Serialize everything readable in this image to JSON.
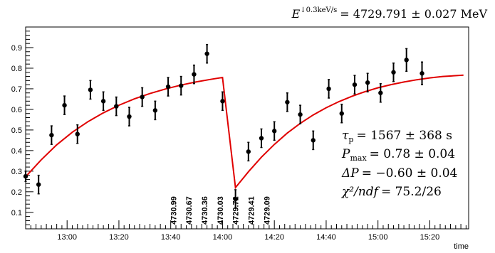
{
  "chart_data": {
    "type": "scatter",
    "title": "",
    "xlabel": "time",
    "ylabel": "",
    "x_unit": "minutes",
    "xlim": [
      "12:44",
      "15:35"
    ],
    "ylim": [
      0.02,
      1.0
    ],
    "y_ticks": [
      0.1,
      0.2,
      0.3,
      0.4,
      0.5,
      0.6,
      0.7,
      0.8,
      0.9
    ],
    "x_ticks": [
      "13:00",
      "13:20",
      "13:40",
      "14:00",
      "14:20",
      "14:40",
      "15:00",
      "15:20"
    ],
    "header": {
      "sym": "E",
      "sup": "↓0.3keV/s",
      "rhs": "= 4729.791 ± 0.027 MeV"
    },
    "points": [
      {
        "t": "12:44",
        "y": 0.275,
        "err": 0.025
      },
      {
        "t": "12:49",
        "y": 0.235,
        "err": 0.045
      },
      {
        "t": "12:54",
        "y": 0.475,
        "err": 0.045
      },
      {
        "t": "12:59",
        "y": 0.62,
        "err": 0.045
      },
      {
        "t": "13:04",
        "y": 0.48,
        "err": 0.045
      },
      {
        "t": "13:09",
        "y": 0.695,
        "err": 0.045
      },
      {
        "t": "13:14",
        "y": 0.64,
        "err": 0.045
      },
      {
        "t": "13:19",
        "y": 0.615,
        "err": 0.045
      },
      {
        "t": "13:24",
        "y": 0.565,
        "err": 0.045
      },
      {
        "t": "13:29",
        "y": 0.66,
        "err": 0.045
      },
      {
        "t": "13:34",
        "y": 0.595,
        "err": 0.045
      },
      {
        "t": "13:39",
        "y": 0.71,
        "err": 0.045
      },
      {
        "t": "13:44",
        "y": 0.715,
        "err": 0.045
      },
      {
        "t": "13:49",
        "y": 0.77,
        "err": 0.045
      },
      {
        "t": "13:54",
        "y": 0.87,
        "err": 0.045
      },
      {
        "t": "14:00",
        "y": 0.64,
        "err": 0.045
      },
      {
        "t": "14:05",
        "y": 0.165,
        "err": 0.045
      },
      {
        "t": "14:10",
        "y": 0.395,
        "err": 0.045
      },
      {
        "t": "14:15",
        "y": 0.46,
        "err": 0.045
      },
      {
        "t": "14:20",
        "y": 0.495,
        "err": 0.045
      },
      {
        "t": "14:25",
        "y": 0.635,
        "err": 0.045
      },
      {
        "t": "14:30",
        "y": 0.575,
        "err": 0.045
      },
      {
        "t": "14:35",
        "y": 0.45,
        "err": 0.045
      },
      {
        "t": "14:41",
        "y": 0.7,
        "err": 0.045
      },
      {
        "t": "14:46",
        "y": 0.58,
        "err": 0.045
      },
      {
        "t": "14:51",
        "y": 0.72,
        "err": 0.045
      },
      {
        "t": "14:56",
        "y": 0.73,
        "err": 0.045
      },
      {
        "t": "15:01",
        "y": 0.68,
        "err": 0.045
      },
      {
        "t": "15:06",
        "y": 0.78,
        "err": 0.045
      },
      {
        "t": "15:11",
        "y": 0.84,
        "err": 0.055
      },
      {
        "t": "15:17",
        "y": 0.775,
        "err": 0.055
      }
    ],
    "fit_curve": [
      {
        "t": "12:44",
        "y": 0.273
      },
      {
        "t": "12:50",
        "y": 0.355
      },
      {
        "t": "12:56",
        "y": 0.428
      },
      {
        "t": "13:02",
        "y": 0.489
      },
      {
        "t": "13:08",
        "y": 0.54
      },
      {
        "t": "13:14",
        "y": 0.583
      },
      {
        "t": "13:20",
        "y": 0.62
      },
      {
        "t": "13:26",
        "y": 0.651
      },
      {
        "t": "13:32",
        "y": 0.677
      },
      {
        "t": "13:38",
        "y": 0.699
      },
      {
        "t": "13:44",
        "y": 0.718
      },
      {
        "t": "13:50",
        "y": 0.734
      },
      {
        "t": "13:56",
        "y": 0.747
      },
      {
        "t": "14:00",
        "y": 0.755
      },
      {
        "t": "14:05",
        "y": 0.22
      },
      {
        "t": "14:10",
        "y": 0.297
      },
      {
        "t": "14:15",
        "y": 0.368
      },
      {
        "t": "14:20",
        "y": 0.43
      },
      {
        "t": "14:25",
        "y": 0.485
      },
      {
        "t": "14:30",
        "y": 0.532
      },
      {
        "t": "14:35",
        "y": 0.573
      },
      {
        "t": "14:40",
        "y": 0.608
      },
      {
        "t": "14:45",
        "y": 0.638
      },
      {
        "t": "14:50",
        "y": 0.664
      },
      {
        "t": "14:55",
        "y": 0.686
      },
      {
        "t": "15:00",
        "y": 0.705
      },
      {
        "t": "15:05",
        "y": 0.72
      },
      {
        "t": "15:10",
        "y": 0.733
      },
      {
        "t": "15:15",
        "y": 0.744
      },
      {
        "t": "15:20",
        "y": 0.753
      },
      {
        "t": "15:25",
        "y": 0.76
      },
      {
        "t": "15:33",
        "y": 0.766
      }
    ],
    "energy_labels": [
      {
        "t": "13:41",
        "text": "4730.99"
      },
      {
        "t": "13:47",
        "text": "4730.67"
      },
      {
        "t": "13:53",
        "text": "4730.36"
      },
      {
        "t": "13:59",
        "text": "4730.03"
      },
      {
        "t": "14:05",
        "text": "4729.72"
      },
      {
        "t": "14:11",
        "text": "4729.41"
      },
      {
        "t": "14:17",
        "text": "4729.09"
      }
    ],
    "annotations": [
      {
        "sym": "τ",
        "sub": "p",
        "rhs": "= 1567 ± 368 s"
      },
      {
        "sym": "P",
        "sub": "max",
        "rhs": "= 0.78 ± 0.04"
      },
      {
        "sym": "ΔP",
        "sub": "",
        "rhs": "= −0.60 ± 0.04"
      },
      {
        "sym": "χ²/ndf",
        "sub": "",
        "rhs": "= 75.2/26"
      }
    ],
    "colors": {
      "fit": "#e00000",
      "points": "#000000",
      "axis": "#000000"
    }
  }
}
